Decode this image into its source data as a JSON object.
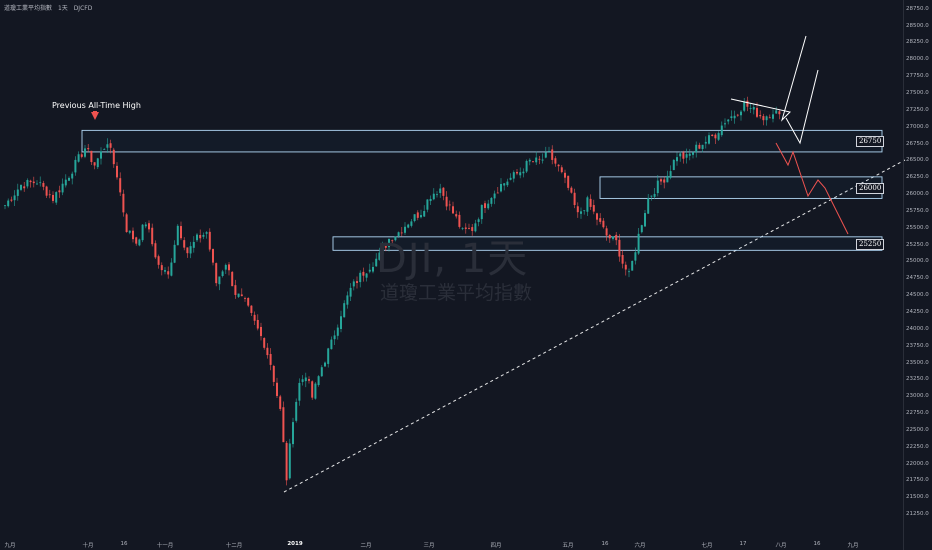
{
  "header": {
    "symbol": "道瓊工業平均指數",
    "interval": "1天",
    "exchange": "DJCFD"
  },
  "watermark": {
    "ticker": "DJI, 1天",
    "name": "道瓊工業平均指數"
  },
  "annotation": {
    "text": "Previous All-Time High"
  },
  "colors": {
    "background": "#131722",
    "up": "#26a69a",
    "down": "#ef5350",
    "zone_border": "#b2d8f5",
    "projection_bull": "#ffffff",
    "projection_bear": "#ef5350",
    "trendline": "#ffffff"
  },
  "zones": [
    {
      "name": "resistance-zone-26750",
      "label": "26750",
      "low": 26640,
      "high": 26960
    },
    {
      "name": "support-zone-26000",
      "label": "26000",
      "low": 25950,
      "high": 26270
    },
    {
      "name": "support-zone-25250",
      "label": "25250",
      "low": 25180,
      "high": 25380
    }
  ],
  "chart_data": {
    "type": "candlestick",
    "y_axis": {
      "range": [
        21000,
        28850
      ],
      "ticks": [
        "28750.0",
        "28500.0",
        "28250.0",
        "28000.0",
        "27750.0",
        "27500.0",
        "27250.0",
        "27000.0",
        "26750.0",
        "26500.0",
        "26250.0",
        "26000.0",
        "25750.0",
        "25500.0",
        "25250.0",
        "25000.0",
        "24750.0",
        "24500.0",
        "24250.0",
        "24000.0",
        "23750.0",
        "23500.0",
        "23250.0",
        "23000.0",
        "22750.0",
        "22500.0",
        "22250.0",
        "22000.0",
        "21750.0",
        "21500.0",
        "21250.0"
      ]
    },
    "x_axis": {
      "ticks": [
        {
          "label": "九月",
          "bold": false
        },
        {
          "label": "十月",
          "bold": false
        },
        {
          "label": "16",
          "bold": false
        },
        {
          "label": "十一月",
          "bold": false
        },
        {
          "label": "十二月",
          "bold": false
        },
        {
          "label": "2019",
          "bold": true
        },
        {
          "label": "二月",
          "bold": false
        },
        {
          "label": "三月",
          "bold": false
        },
        {
          "label": "四月",
          "bold": false
        },
        {
          "label": "五月",
          "bold": false
        },
        {
          "label": "16",
          "bold": false
        },
        {
          "label": "六月",
          "bold": false
        },
        {
          "label": "七月",
          "bold": false
        },
        {
          "label": "17",
          "bold": false
        },
        {
          "label": "八月",
          "bold": false
        },
        {
          "label": "16",
          "bold": false
        },
        {
          "label": "九月",
          "bold": false
        }
      ]
    },
    "anchors": [
      [
        0,
        25850
      ],
      [
        5,
        26150
      ],
      [
        10,
        26200
      ],
      [
        15,
        25950
      ],
      [
        20,
        26300
      ],
      [
        25,
        26700
      ],
      [
        28,
        26450
      ],
      [
        32,
        26800
      ],
      [
        35,
        26300
      ],
      [
        38,
        25500
      ],
      [
        41,
        25300
      ],
      [
        44,
        25600
      ],
      [
        48,
        24950
      ],
      [
        51,
        24800
      ],
      [
        54,
        25550
      ],
      [
        57,
        25150
      ],
      [
        60,
        25350
      ],
      [
        63,
        25450
      ],
      [
        66,
        24700
      ],
      [
        69,
        25000
      ],
      [
        72,
        24550
      ],
      [
        75,
        24400
      ],
      [
        78,
        24100
      ],
      [
        81,
        23800
      ],
      [
        83,
        23500
      ],
      [
        86,
        22800
      ],
      [
        88,
        21800
      ],
      [
        90,
        22700
      ],
      [
        92,
        23200
      ],
      [
        94,
        23350
      ],
      [
        96,
        23000
      ],
      [
        99,
        23450
      ],
      [
        102,
        23800
      ],
      [
        105,
        24250
      ],
      [
        108,
        24600
      ],
      [
        111,
        24800
      ],
      [
        114,
        24950
      ],
      [
        117,
        25100
      ],
      [
        120,
        25350
      ],
      [
        123,
        25450
      ],
      [
        126,
        25600
      ],
      [
        130,
        25750
      ],
      [
        133,
        26000
      ],
      [
        136,
        26100
      ],
      [
        138,
        25900
      ],
      [
        141,
        25650
      ],
      [
        143,
        25450
      ],
      [
        146,
        25500
      ],
      [
        149,
        25800
      ],
      [
        152,
        26000
      ],
      [
        155,
        26150
      ],
      [
        158,
        26250
      ],
      [
        161,
        26350
      ],
      [
        164,
        26500
      ],
      [
        167,
        26500
      ],
      [
        170,
        26600
      ],
      [
        173,
        26400
      ],
      [
        176,
        26100
      ],
      [
        179,
        25700
      ],
      [
        182,
        25900
      ],
      [
        185,
        25650
      ],
      [
        188,
        25400
      ],
      [
        191,
        25300
      ],
      [
        193,
        25000
      ],
      [
        195,
        24800
      ],
      [
        197,
        25200
      ],
      [
        199,
        25600
      ],
      [
        201,
        25950
      ],
      [
        204,
        26150
      ],
      [
        207,
        26300
      ],
      [
        210,
        26600
      ],
      [
        213,
        26550
      ],
      [
        216,
        26700
      ],
      [
        219,
        26800
      ],
      [
        222,
        26900
      ],
      [
        225,
        27100
      ],
      [
        228,
        27200
      ],
      [
        231,
        27350
      ],
      [
        234,
        27250
      ],
      [
        237,
        27150
      ],
      [
        240,
        27250
      ],
      [
        242,
        27200
      ]
    ],
    "projections": {
      "bull_a": [
        [
          27020,
          0
        ],
        [
          27120,
          1
        ],
        [
          27250,
          2
        ],
        [
          27400,
          3
        ]
      ],
      "bear": [
        [
          26850,
          0
        ],
        [
          26400,
          1
        ]
      ]
    }
  }
}
